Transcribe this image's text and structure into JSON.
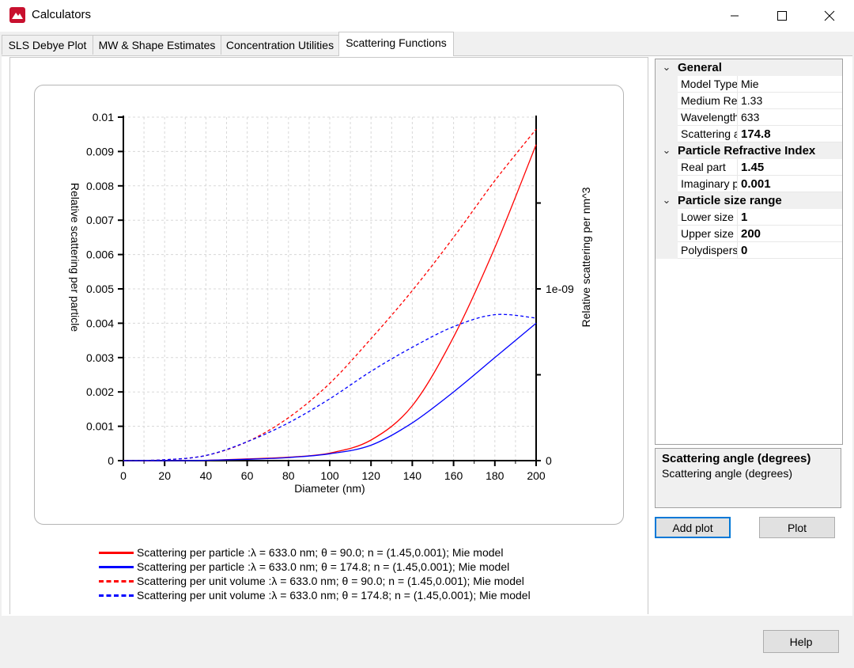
{
  "window": {
    "title": "Calculators"
  },
  "tabs": [
    {
      "label": "SLS Debye Plot"
    },
    {
      "label": "MW & Shape Estimates"
    },
    {
      "label": "Concentration Utilities"
    },
    {
      "label": "Scattering Functions"
    }
  ],
  "chart_data": {
    "type": "line",
    "xlabel": "Diameter (nm)",
    "ylabel": "Relative scattering per particle",
    "y2label": "Relative scattering per nm^3",
    "xlim": [
      0,
      200
    ],
    "ylim": [
      0,
      0.01
    ],
    "y2lim": [
      0,
      2e-09
    ],
    "x_ticks": [
      0,
      10,
      20,
      30,
      40,
      50,
      60,
      70,
      80,
      90,
      100,
      110,
      120,
      130,
      140,
      150,
      160,
      170,
      180,
      190,
      200
    ],
    "x_tick_labels": [
      "0",
      "20",
      "40",
      "60",
      "80",
      "100",
      "120",
      "140",
      "160",
      "180",
      "200"
    ],
    "y_tick_labels": [
      "0",
      "0.001",
      "0.002",
      "0.003",
      "0.004",
      "0.005",
      "0.006",
      "0.007",
      "0.008",
      "0.009",
      "0.01"
    ],
    "y2_tick_labels": [
      "0",
      "1e-09"
    ],
    "grid": true,
    "legend_position": "bottom",
    "series": [
      {
        "name": "Scattering per particle :λ = 633.0 nm; θ = 90.0; n = (1.45,0.001); Mie model",
        "axis": "left",
        "color": "#ff0000",
        "dash": false,
        "x": [
          0,
          20,
          40,
          60,
          80,
          100,
          120,
          140,
          160,
          180,
          200
        ],
        "y": [
          0,
          0,
          1e-05,
          5e-05,
          0.0001,
          0.00022,
          0.0006,
          0.0016,
          0.0036,
          0.0062,
          0.0092
        ]
      },
      {
        "name": "Scattering per particle :λ = 633.0 nm; θ = 174.8; n = (1.45,0.001); Mie model",
        "axis": "left",
        "color": "#0000ff",
        "dash": false,
        "x": [
          0,
          20,
          40,
          60,
          80,
          100,
          120,
          140,
          160,
          180,
          200
        ],
        "y": [
          0,
          0,
          1e-05,
          4e-05,
          9e-05,
          0.0002,
          0.00045,
          0.0011,
          0.002,
          0.003,
          0.004
        ]
      },
      {
        "name": "Scattering per unit volume :λ = 633.0 nm; θ = 90.0; n = (1.45,0.001); Mie model",
        "axis": "right",
        "color": "#ff0000",
        "dash": true,
        "x": [
          0,
          20,
          40,
          60,
          80,
          100,
          120,
          140,
          160,
          180,
          200
        ],
        "y": [
          0,
          5e-12,
          3e-11,
          1.1e-10,
          2.5e-10,
          4.5e-10,
          7.1e-10,
          9.9e-10,
          1.3e-09,
          1.63e-09,
          1.93e-09
        ]
      },
      {
        "name": "Scattering per unit volume :λ = 633.0 nm; θ = 174.8; n = (1.45,0.001); Mie model",
        "axis": "right",
        "color": "#0000ff",
        "dash": true,
        "x": [
          0,
          20,
          40,
          60,
          80,
          100,
          120,
          140,
          160,
          180,
          200
        ],
        "y": [
          0,
          5e-12,
          3e-11,
          1.1e-10,
          2.2e-10,
          3.6e-10,
          5.2e-10,
          6.6e-10,
          7.8e-10,
          8.5e-10,
          8.3e-10
        ]
      }
    ]
  },
  "property_grid": {
    "categories": [
      {
        "label": "General",
        "rows": [
          {
            "name": "Model Type",
            "value": "Mie",
            "bold": false
          },
          {
            "name": "Medium Refractive Index",
            "value": "1.33",
            "bold": false
          },
          {
            "name": "Wavelength",
            "value": "633",
            "bold": false
          },
          {
            "name": "Scattering angle",
            "value": "174.8",
            "bold": true
          }
        ]
      },
      {
        "label": "Particle Refractive Index",
        "rows": [
          {
            "name": "Real part",
            "value": "1.45",
            "bold": true
          },
          {
            "name": "Imaginary part",
            "value": "0.001",
            "bold": true
          }
        ]
      },
      {
        "label": "Particle size range",
        "rows": [
          {
            "name": "Lower size",
            "value": "1",
            "bold": true
          },
          {
            "name": "Upper size",
            "value": "200",
            "bold": true
          },
          {
            "name": "Polydispersity",
            "value": "0",
            "bold": true
          }
        ]
      }
    ]
  },
  "description": {
    "title": "Scattering angle (degrees)",
    "text": "Scattering angle (degrees)"
  },
  "buttons": {
    "add_plot": "Add plot",
    "plot": "Plot",
    "help": "Help"
  }
}
